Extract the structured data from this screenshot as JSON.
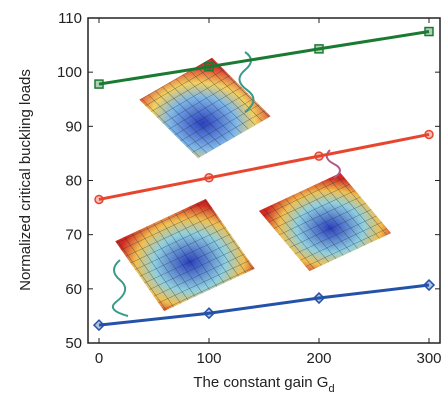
{
  "chart_data": {
    "type": "line",
    "x_label": {
      "text": "The constant gain G",
      "subscript": "d"
    },
    "y_label": "Normalized critical buckling loads",
    "x": [
      0,
      100,
      200,
      300
    ],
    "series": [
      {
        "color": "#1b7a32",
        "marker": "square",
        "values": [
          97.8,
          101,
          104.3,
          107.5
        ]
      },
      {
        "color": "#e8452f",
        "marker": "circle",
        "values": [
          76.5,
          80.5,
          84.5,
          88.5
        ]
      },
      {
        "color": "#2452a8",
        "marker": "diamond",
        "values": [
          53.3,
          55.5,
          58.3,
          60.7
        ]
      }
    ],
    "xlim": [
      -10,
      310
    ],
    "xticks": [
      0,
      100,
      200,
      300
    ],
    "ylim": [
      50,
      110
    ],
    "yticks": [
      50,
      60,
      70,
      80,
      90,
      100,
      110
    ],
    "grid": false
  }
}
